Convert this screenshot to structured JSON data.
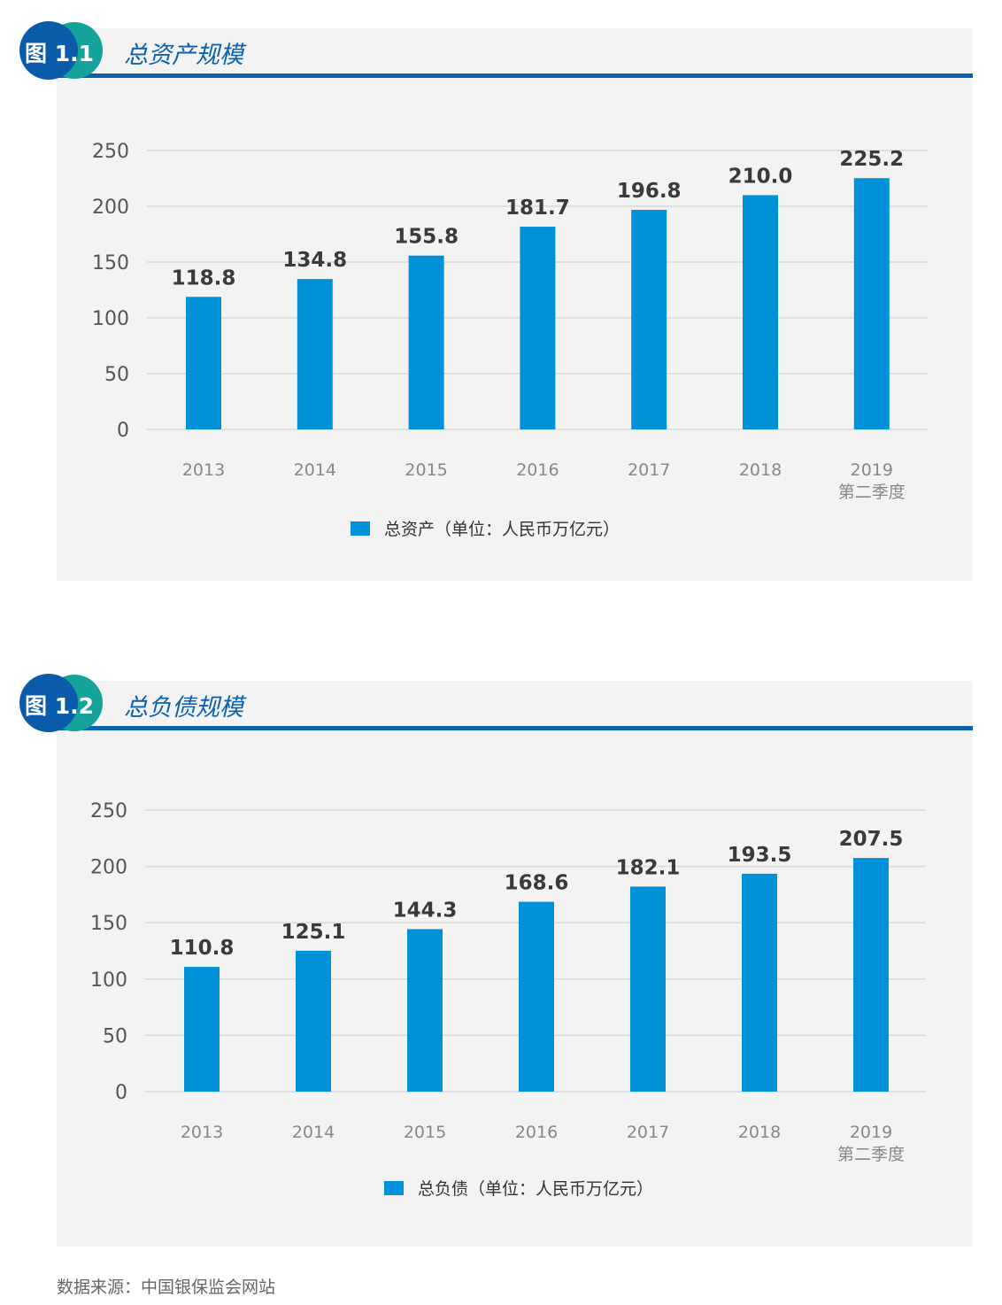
{
  "colors": {
    "bar": "#0092d8",
    "header_blue": "#0a62ad",
    "teal": "#13a39a",
    "panel_bg": "#f3f3f3",
    "grid": "#d9d9d9"
  },
  "source": "数据来源：中国银保监会网站",
  "chart_data": [
    {
      "type": "bar",
      "badge": "图 1.1",
      "title": "总资产规模",
      "categories": [
        "2013",
        "2014",
        "2015",
        "2016",
        "2017",
        "2018",
        "2019\n第二季度"
      ],
      "series": [
        {
          "name": "总资产（单位：人民币万亿元）",
          "values": [
            118.8,
            134.8,
            155.8,
            181.7,
            196.8,
            210.0,
            225.2
          ],
          "labels": [
            "118.8",
            "134.8",
            "155.8",
            "181.7",
            "196.8",
            "210.0",
            "225.2"
          ]
        }
      ],
      "y_ticks": [
        "0",
        "50",
        "100",
        "150",
        "200",
        "250"
      ],
      "ylim": [
        0,
        250
      ],
      "grid": true,
      "legend_position": "bottom-center"
    },
    {
      "type": "bar",
      "badge": "图 1.2",
      "title": "总负债规模",
      "categories": [
        "2013",
        "2014",
        "2015",
        "2016",
        "2017",
        "2018",
        "2019\n第二季度"
      ],
      "series": [
        {
          "name": "总负债（单位：人民币万亿元）",
          "values": [
            110.8,
            125.1,
            144.3,
            168.6,
            182.1,
            193.5,
            207.5
          ],
          "labels": [
            "110.8",
            "125.1",
            "144.3",
            "168.6",
            "182.1",
            "193.5",
            "207.5"
          ]
        }
      ],
      "y_ticks": [
        "0",
        "50",
        "100",
        "150",
        "200",
        "250"
      ],
      "ylim": [
        0,
        250
      ],
      "grid": true,
      "legend_position": "bottom-center"
    }
  ]
}
